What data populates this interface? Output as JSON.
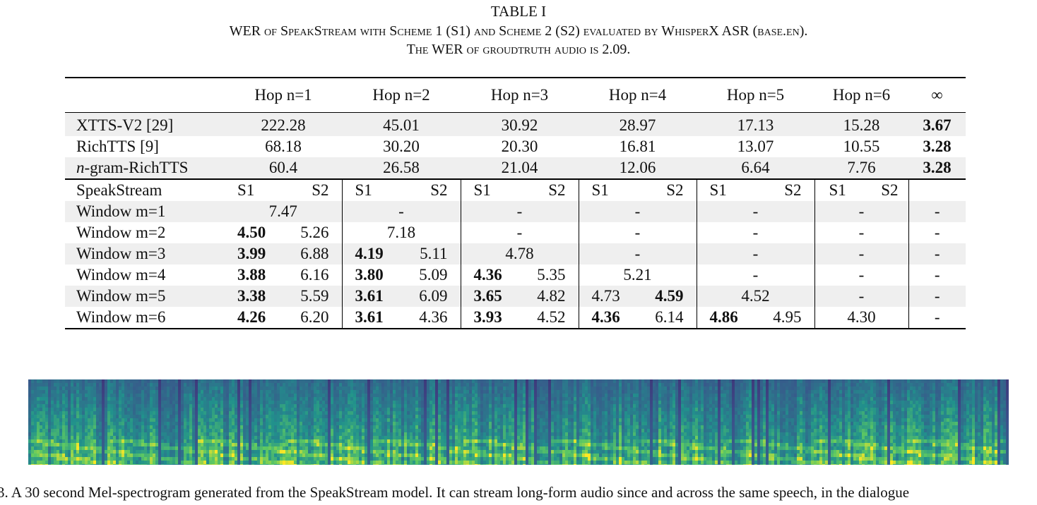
{
  "table": {
    "label": "TABLE I",
    "caption_line1": "WER of SpeakStream with Scheme 1 (S1) and Scheme 2 (S2) evaluated by WhisperX ASR (base.en).",
    "caption_line2": "The WER of groudtruth audio is 2.09.",
    "hop_headers": [
      "Hop n=1",
      "Hop n=2",
      "Hop n=3",
      "Hop n=4",
      "Hop n=5",
      "Hop n=6",
      "∞"
    ],
    "baselines": [
      {
        "name": "XTTS-V2 [29]",
        "values": [
          "222.28",
          "45.01",
          "30.92",
          "28.97",
          "17.13",
          "15.28",
          "3.67"
        ]
      },
      {
        "name": "RichTTS [9]",
        "values": [
          "68.18",
          "30.20",
          "20.30",
          "16.81",
          "13.07",
          "10.55",
          "3.28"
        ]
      },
      {
        "name_prefix": "n",
        "name_suffix": "-gram-RichTTS",
        "values": [
          "60.4",
          "26.58",
          "21.04",
          "12.06",
          "6.64",
          "7.76",
          "3.28"
        ]
      }
    ],
    "speakstream_header": {
      "label": "SpeakStream",
      "s1": "S1",
      "s2": "S2"
    },
    "windows": [
      {
        "label": "Window m=1",
        "cells": [
          "7.47",
          "-",
          "-",
          "-",
          "-",
          "-",
          "-"
        ]
      },
      {
        "label": "Window m=2",
        "cells": [
          [
            "4.50",
            "5.26"
          ],
          "7.18",
          "-",
          "-",
          "-",
          "-",
          "-"
        ]
      },
      {
        "label": "Window m=3",
        "cells": [
          [
            "3.99",
            "6.88"
          ],
          [
            "4.19",
            "5.11"
          ],
          "4.78",
          "-",
          "-",
          "-",
          "-"
        ]
      },
      {
        "label": "Window m=4",
        "cells": [
          [
            "3.88",
            "6.16"
          ],
          [
            "3.80",
            "5.09"
          ],
          [
            "4.36",
            "5.35"
          ],
          "5.21",
          "-",
          "-",
          "-"
        ]
      },
      {
        "label": "Window m=5",
        "cells": [
          [
            "3.38",
            "5.59"
          ],
          [
            "3.61",
            "6.09"
          ],
          [
            "3.65",
            "4.82"
          ],
          [
            "4.73",
            "4.59"
          ],
          "4.52",
          "-",
          "-"
        ]
      },
      {
        "label": "Window m=6",
        "cells": [
          [
            "4.26",
            "6.20"
          ],
          [
            "3.61",
            "4.36"
          ],
          [
            "3.93",
            "4.52"
          ],
          [
            "4.36",
            "6.14"
          ],
          [
            "4.86",
            "4.95"
          ],
          "4.30",
          "-"
        ]
      }
    ]
  },
  "figure_caption": "3.   A 30 second Mel-spectrogram generated from the SpeakStream model. It can stream long-form audio since and across the same speech, in the  dialogue"
}
